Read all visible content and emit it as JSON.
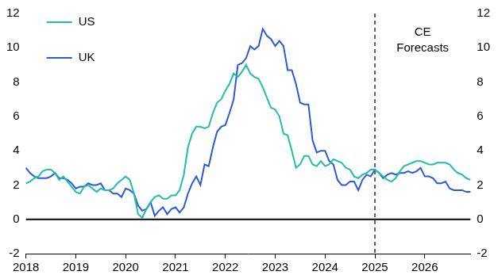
{
  "chart_data": {
    "type": "line",
    "categories": [
      "2018",
      null,
      null,
      null,
      null,
      null,
      null,
      null,
      null,
      null,
      null,
      null,
      "2019",
      null,
      null,
      null,
      null,
      null,
      null,
      null,
      null,
      null,
      null,
      null,
      "2020",
      null,
      null,
      null,
      null,
      null,
      null,
      null,
      null,
      null,
      null,
      null,
      "2021",
      null,
      null,
      null,
      null,
      null,
      null,
      null,
      null,
      null,
      null,
      null,
      "2022",
      null,
      null,
      null,
      null,
      null,
      null,
      null,
      null,
      null,
      null,
      null,
      "2023",
      null,
      null,
      null,
      null,
      null,
      null,
      null,
      null,
      null,
      null,
      null,
      "2024",
      null,
      null,
      null,
      null,
      null,
      null,
      null,
      null,
      null,
      null,
      null,
      "2025",
      null,
      null,
      null,
      null,
      null,
      null,
      null,
      null,
      null,
      null,
      null,
      "2026",
      null,
      null,
      null,
      null,
      null,
      null,
      null,
      null,
      null,
      null,
      null
    ],
    "series": [
      {
        "name": "US",
        "color": "#22bfa6",
        "values": [
          2.1,
          2.2,
          2.4,
          2.5,
          2.8,
          2.9,
          2.9,
          2.7,
          2.3,
          2.5,
          2.2,
          1.9,
          1.6,
          1.5,
          1.9,
          2.0,
          1.8,
          1.6,
          1.8,
          1.7,
          1.7,
          1.8,
          2.1,
          2.3,
          2.5,
          2.3,
          1.5,
          0.3,
          0.1,
          0.6,
          1.0,
          1.3,
          1.4,
          1.2,
          1.2,
          1.4,
          1.4,
          1.7,
          2.6,
          4.2,
          5.0,
          5.4,
          5.4,
          5.3,
          5.4,
          6.2,
          6.8,
          7.0,
          7.5,
          7.9,
          8.5,
          8.3,
          8.6,
          9.0,
          8.5,
          8.3,
          8.2,
          7.7,
          7.1,
          6.5,
          6.4,
          6.0,
          5.0,
          4.9,
          4.0,
          3.0,
          3.2,
          3.7,
          3.7,
          3.2,
          3.1,
          3.4,
          3.1,
          3.2,
          3.5,
          3.4,
          3.3,
          3.0,
          2.9,
          2.5,
          2.4,
          2.6,
          2.7,
          2.9,
          2.9,
          2.7,
          2.5,
          2.3,
          2.2,
          2.4,
          2.8,
          3.1,
          3.2,
          3.3,
          3.4,
          3.4,
          3.3,
          3.2,
          3.2,
          3.3,
          3.3,
          3.3,
          3.2,
          2.9,
          2.7,
          2.6,
          2.4,
          2.3
        ]
      },
      {
        "name": "UK",
        "color": "#2a5bd7",
        "values": [
          3.0,
          2.7,
          2.5,
          2.4,
          2.4,
          2.4,
          2.5,
          2.7,
          2.4,
          2.4,
          2.3,
          2.1,
          1.8,
          1.9,
          1.9,
          2.1,
          2.0,
          2.0,
          2.1,
          1.7,
          1.7,
          1.5,
          1.5,
          1.3,
          1.8,
          1.7,
          1.5,
          0.8,
          0.5,
          0.6,
          1.0,
          0.2,
          0.5,
          0.7,
          0.3,
          0.6,
          0.7,
          0.4,
          0.7,
          1.5,
          2.1,
          2.5,
          2.0,
          3.2,
          3.1,
          4.2,
          5.1,
          5.4,
          5.5,
          6.2,
          7.0,
          9.0,
          9.1,
          9.4,
          10.1,
          9.9,
          10.1,
          11.1,
          10.7,
          10.5,
          10.1,
          10.4,
          10.1,
          8.7,
          8.7,
          7.9,
          6.8,
          6.7,
          6.7,
          4.6,
          3.9,
          4.0,
          4.0,
          3.4,
          3.2,
          2.3,
          2.0,
          2.0,
          2.2,
          2.2,
          1.7,
          2.3,
          2.6,
          2.5,
          2.9,
          2.7,
          2.4,
          2.6,
          2.7,
          2.6,
          2.7,
          2.7,
          2.8,
          2.7,
          2.8,
          3.0,
          2.5,
          2.5,
          2.4,
          2.1,
          2.1,
          2.2,
          1.8,
          1.7,
          1.7,
          1.7,
          1.6,
          1.6
        ]
      }
    ],
    "ylim": [
      -2,
      12
    ],
    "yticks": [
      -2,
      0,
      2,
      4,
      6,
      8,
      10,
      12
    ],
    "y2lim": [
      -2,
      12
    ],
    "y2ticks": [
      -2,
      0,
      2,
      4,
      6,
      8,
      10,
      12
    ],
    "grid": false,
    "legend": "top-left",
    "hline": 0,
    "annotations": [
      {
        "text": "CE Forecasts",
        "x": "2025",
        "line_style": "dashed"
      }
    ]
  }
}
